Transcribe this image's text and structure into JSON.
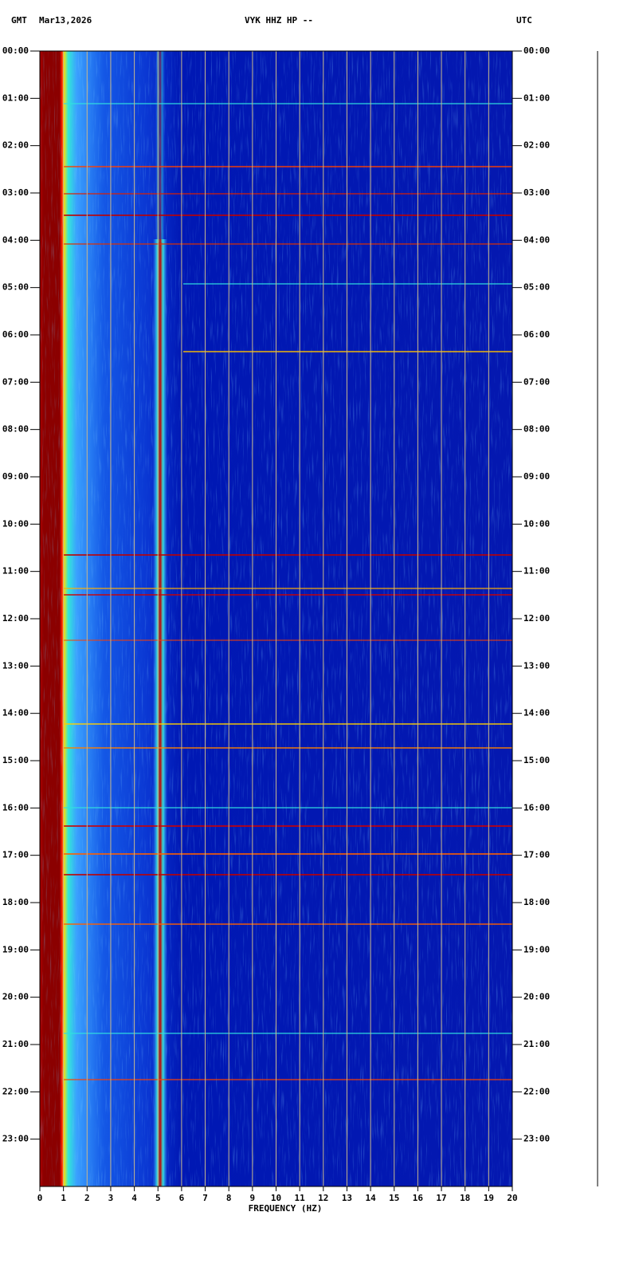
{
  "chart_data": {
    "type": "spectrogram",
    "header": {
      "left": "GMT",
      "date": "Mar13,2026",
      "station": "VYK HHZ HP --",
      "right": "UTC"
    },
    "xlabel": "FREQUENCY (HZ)",
    "xlim": [
      0,
      20
    ],
    "xticks": [
      0,
      1,
      2,
      3,
      4,
      5,
      6,
      7,
      8,
      9,
      10,
      11,
      12,
      13,
      14,
      15,
      16,
      17,
      18,
      19,
      20
    ],
    "ylim": [
      0,
      24
    ],
    "y_inverted": true,
    "yticks": [
      {
        "value": 0,
        "label": "00:00"
      },
      {
        "value": 1,
        "label": "01:00"
      },
      {
        "value": 2,
        "label": "02:00"
      },
      {
        "value": 3,
        "label": "03:00"
      },
      {
        "value": 4,
        "label": "04:00"
      },
      {
        "value": 5,
        "label": "05:00"
      },
      {
        "value": 6,
        "label": "06:00"
      },
      {
        "value": 7,
        "label": "07:00"
      },
      {
        "value": 8,
        "label": "08:00"
      },
      {
        "value": 9,
        "label": "09:00"
      },
      {
        "value": 10,
        "label": "10:00"
      },
      {
        "value": 11,
        "label": "11:00"
      },
      {
        "value": 12,
        "label": "12:00"
      },
      {
        "value": 13,
        "label": "13:00"
      },
      {
        "value": 14,
        "label": "14:00"
      },
      {
        "value": 15,
        "label": "15:00"
      },
      {
        "value": 16,
        "label": "16:00"
      },
      {
        "value": 17,
        "label": "17:00"
      },
      {
        "value": 18,
        "label": "18:00"
      },
      {
        "value": 19,
        "label": "19:00"
      },
      {
        "value": 20,
        "label": "20:00"
      },
      {
        "value": 21,
        "label": "21:00"
      },
      {
        "value": 22,
        "label": "22:00"
      },
      {
        "value": 23,
        "label": "23:00"
      }
    ],
    "grid": true,
    "grid_color": "#c8b88c"
  }
}
